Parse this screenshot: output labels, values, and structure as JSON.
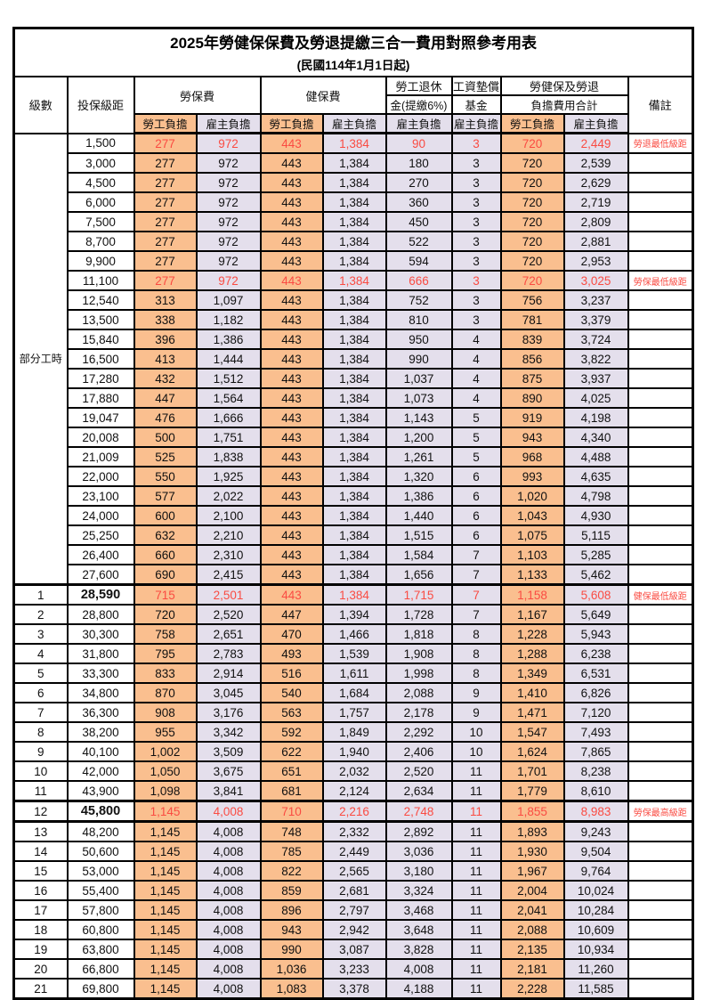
{
  "title": "2025年勞健保保費及勞退提繳三合一費用對照參考用表",
  "subtitle": "(民國114年1月1日起)",
  "colors": {
    "employee_fill": "#FABF8F",
    "employer_fill": "#E4DFEC",
    "red_text": "#FA4B42",
    "border": "#000000"
  },
  "header": {
    "level_label": "級數",
    "bracket_label": "投保級距",
    "labor_group": "勞保費",
    "health_group": "健保費",
    "pension_line1": "勞工退休",
    "pension_line2": "金(提繳6%)",
    "wagefund_line1": "工資墊償",
    "wagefund_line2": "基金",
    "total_line1": "勞健保及勞退",
    "total_line2": "負擔費用合計",
    "remark_label": "備註",
    "employee_label": "勞工負擔",
    "employer_label": "雇主負擔"
  },
  "part_time_label": "部分工時",
  "rows": [
    {
      "level": "",
      "bracket": "1,500",
      "v": [
        "277",
        "972",
        "443",
        "1,384",
        "90",
        "3",
        "720",
        "2,449"
      ],
      "remark": "勞退最低級距",
      "red": true
    },
    {
      "level": "",
      "bracket": "3,000",
      "v": [
        "277",
        "972",
        "443",
        "1,384",
        "180",
        "3",
        "720",
        "2,539"
      ],
      "remark": ""
    },
    {
      "level": "",
      "bracket": "4,500",
      "v": [
        "277",
        "972",
        "443",
        "1,384",
        "270",
        "3",
        "720",
        "2,629"
      ],
      "remark": ""
    },
    {
      "level": "",
      "bracket": "6,000",
      "v": [
        "277",
        "972",
        "443",
        "1,384",
        "360",
        "3",
        "720",
        "2,719"
      ],
      "remark": ""
    },
    {
      "level": "",
      "bracket": "7,500",
      "v": [
        "277",
        "972",
        "443",
        "1,384",
        "450",
        "3",
        "720",
        "2,809"
      ],
      "remark": ""
    },
    {
      "level": "",
      "bracket": "8,700",
      "v": [
        "277",
        "972",
        "443",
        "1,384",
        "522",
        "3",
        "720",
        "2,881"
      ],
      "remark": ""
    },
    {
      "level": "",
      "bracket": "9,900",
      "v": [
        "277",
        "972",
        "443",
        "1,384",
        "594",
        "3",
        "720",
        "2,953"
      ],
      "remark": ""
    },
    {
      "level": "",
      "bracket": "11,100",
      "v": [
        "277",
        "972",
        "443",
        "1,384",
        "666",
        "3",
        "720",
        "3,025"
      ],
      "remark": "勞保最低級距",
      "red": true
    },
    {
      "level": "",
      "bracket": "12,540",
      "v": [
        "313",
        "1,097",
        "443",
        "1,384",
        "752",
        "3",
        "756",
        "3,237"
      ],
      "remark": ""
    },
    {
      "level": "",
      "bracket": "13,500",
      "v": [
        "338",
        "1,182",
        "443",
        "1,384",
        "810",
        "3",
        "781",
        "3,379"
      ],
      "remark": ""
    },
    {
      "level": "",
      "bracket": "15,840",
      "v": [
        "396",
        "1,386",
        "443",
        "1,384",
        "950",
        "4",
        "839",
        "3,724"
      ],
      "remark": ""
    },
    {
      "level": "",
      "bracket": "16,500",
      "v": [
        "413",
        "1,444",
        "443",
        "1,384",
        "990",
        "4",
        "856",
        "3,822"
      ],
      "remark": ""
    },
    {
      "level": "",
      "bracket": "17,280",
      "v": [
        "432",
        "1,512",
        "443",
        "1,384",
        "1,037",
        "4",
        "875",
        "3,937"
      ],
      "remark": ""
    },
    {
      "level": "",
      "bracket": "17,880",
      "v": [
        "447",
        "1,564",
        "443",
        "1,384",
        "1,073",
        "4",
        "890",
        "4,025"
      ],
      "remark": ""
    },
    {
      "level": "",
      "bracket": "19,047",
      "v": [
        "476",
        "1,666",
        "443",
        "1,384",
        "1,143",
        "5",
        "919",
        "4,198"
      ],
      "remark": ""
    },
    {
      "level": "",
      "bracket": "20,008",
      "v": [
        "500",
        "1,751",
        "443",
        "1,384",
        "1,200",
        "5",
        "943",
        "4,340"
      ],
      "remark": ""
    },
    {
      "level": "",
      "bracket": "21,009",
      "v": [
        "525",
        "1,838",
        "443",
        "1,384",
        "1,261",
        "5",
        "968",
        "4,488"
      ],
      "remark": ""
    },
    {
      "level": "",
      "bracket": "22,000",
      "v": [
        "550",
        "1,925",
        "443",
        "1,384",
        "1,320",
        "6",
        "993",
        "4,635"
      ],
      "remark": ""
    },
    {
      "level": "",
      "bracket": "23,100",
      "v": [
        "577",
        "2,022",
        "443",
        "1,384",
        "1,386",
        "6",
        "1,020",
        "4,798"
      ],
      "remark": ""
    },
    {
      "level": "",
      "bracket": "24,000",
      "v": [
        "600",
        "2,100",
        "443",
        "1,384",
        "1,440",
        "6",
        "1,043",
        "4,930"
      ],
      "remark": ""
    },
    {
      "level": "",
      "bracket": "25,250",
      "v": [
        "632",
        "2,210",
        "443",
        "1,384",
        "1,515",
        "6",
        "1,075",
        "5,115"
      ],
      "remark": ""
    },
    {
      "level": "",
      "bracket": "26,400",
      "v": [
        "660",
        "2,310",
        "443",
        "1,384",
        "1,584",
        "7",
        "1,103",
        "5,285"
      ],
      "remark": ""
    },
    {
      "level": "",
      "bracket": "27,600",
      "v": [
        "690",
        "2,415",
        "443",
        "1,384",
        "1,656",
        "7",
        "1,133",
        "5,462"
      ],
      "remark": ""
    },
    {
      "level": "1",
      "bracket": "28,590",
      "v": [
        "715",
        "2,501",
        "443",
        "1,384",
        "1,715",
        "7",
        "1,158",
        "5,608"
      ],
      "remark": "健保最低級距",
      "red": true,
      "bold": true,
      "tt": true
    },
    {
      "level": "2",
      "bracket": "28,800",
      "v": [
        "720",
        "2,520",
        "447",
        "1,394",
        "1,728",
        "7",
        "1,167",
        "5,649"
      ],
      "remark": ""
    },
    {
      "level": "3",
      "bracket": "30,300",
      "v": [
        "758",
        "2,651",
        "470",
        "1,466",
        "1,818",
        "8",
        "1,228",
        "5,943"
      ],
      "remark": ""
    },
    {
      "level": "4",
      "bracket": "31,800",
      "v": [
        "795",
        "2,783",
        "493",
        "1,539",
        "1,908",
        "8",
        "1,288",
        "6,238"
      ],
      "remark": ""
    },
    {
      "level": "5",
      "bracket": "33,300",
      "v": [
        "833",
        "2,914",
        "516",
        "1,611",
        "1,998",
        "8",
        "1,349",
        "6,531"
      ],
      "remark": ""
    },
    {
      "level": "6",
      "bracket": "34,800",
      "v": [
        "870",
        "3,045",
        "540",
        "1,684",
        "2,088",
        "9",
        "1,410",
        "6,826"
      ],
      "remark": ""
    },
    {
      "level": "7",
      "bracket": "36,300",
      "v": [
        "908",
        "3,176",
        "563",
        "1,757",
        "2,178",
        "9",
        "1,471",
        "7,120"
      ],
      "remark": ""
    },
    {
      "level": "8",
      "bracket": "38,200",
      "v": [
        "955",
        "3,342",
        "592",
        "1,849",
        "2,292",
        "10",
        "1,547",
        "7,493"
      ],
      "remark": ""
    },
    {
      "level": "9",
      "bracket": "40,100",
      "v": [
        "1,002",
        "3,509",
        "622",
        "1,940",
        "2,406",
        "10",
        "1,624",
        "7,865"
      ],
      "remark": ""
    },
    {
      "level": "10",
      "bracket": "42,000",
      "v": [
        "1,050",
        "3,675",
        "651",
        "2,032",
        "2,520",
        "11",
        "1,701",
        "8,238"
      ],
      "remark": ""
    },
    {
      "level": "11",
      "bracket": "43,900",
      "v": [
        "1,098",
        "3,841",
        "681",
        "2,124",
        "2,634",
        "11",
        "1,779",
        "8,610"
      ],
      "remark": ""
    },
    {
      "level": "12",
      "bracket": "45,800",
      "v": [
        "1,145",
        "4,008",
        "710",
        "2,216",
        "2,748",
        "11",
        "1,855",
        "8,983"
      ],
      "remark": "勞保最高級距",
      "red": true,
      "bold": true,
      "tt": true,
      "tb": true
    },
    {
      "level": "13",
      "bracket": "48,200",
      "v": [
        "1,145",
        "4,008",
        "748",
        "2,332",
        "2,892",
        "11",
        "1,893",
        "9,243"
      ],
      "remark": ""
    },
    {
      "level": "14",
      "bracket": "50,600",
      "v": [
        "1,145",
        "4,008",
        "785",
        "2,449",
        "3,036",
        "11",
        "1,930",
        "9,504"
      ],
      "remark": ""
    },
    {
      "level": "15",
      "bracket": "53,000",
      "v": [
        "1,145",
        "4,008",
        "822",
        "2,565",
        "3,180",
        "11",
        "1,967",
        "9,764"
      ],
      "remark": ""
    },
    {
      "level": "16",
      "bracket": "55,400",
      "v": [
        "1,145",
        "4,008",
        "859",
        "2,681",
        "3,324",
        "11",
        "2,004",
        "10,024"
      ],
      "remark": ""
    },
    {
      "level": "17",
      "bracket": "57,800",
      "v": [
        "1,145",
        "4,008",
        "896",
        "2,797",
        "3,468",
        "11",
        "2,041",
        "10,284"
      ],
      "remark": ""
    },
    {
      "level": "18",
      "bracket": "60,800",
      "v": [
        "1,145",
        "4,008",
        "943",
        "2,942",
        "3,648",
        "11",
        "2,088",
        "10,609"
      ],
      "remark": ""
    },
    {
      "level": "19",
      "bracket": "63,800",
      "v": [
        "1,145",
        "4,008",
        "990",
        "3,087",
        "3,828",
        "11",
        "2,135",
        "10,934"
      ],
      "remark": ""
    },
    {
      "level": "20",
      "bracket": "66,800",
      "v": [
        "1,145",
        "4,008",
        "1,036",
        "3,233",
        "4,008",
        "11",
        "2,181",
        "11,260"
      ],
      "remark": ""
    },
    {
      "level": "21",
      "bracket": "69,800",
      "v": [
        "1,145",
        "4,008",
        "1,083",
        "3,378",
        "4,188",
        "11",
        "2,228",
        "11,585"
      ],
      "remark": ""
    }
  ]
}
